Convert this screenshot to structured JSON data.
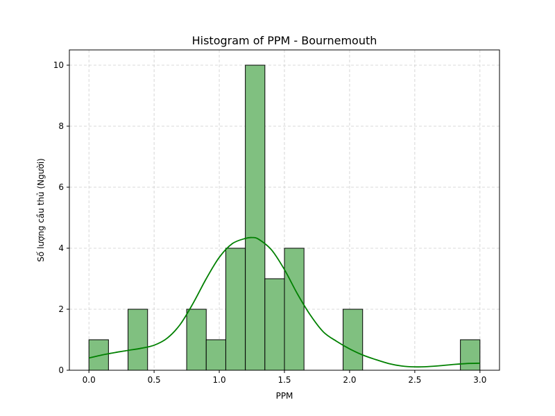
{
  "chart_data": {
    "type": "bar",
    "title": "Histogram of PPM - Bournemouth",
    "xlabel": "PPM",
    "ylabel": "Số lượng cầu thủ (Người)",
    "xlim": [
      -0.15,
      3.15
    ],
    "ylim": [
      0,
      10.5
    ],
    "xticks": [
      0.0,
      0.5,
      1.0,
      1.5,
      2.0,
      2.5,
      3.0
    ],
    "xtick_labels": [
      "0.0",
      "0.5",
      "1.0",
      "1.5",
      "2.0",
      "2.5",
      "3.0"
    ],
    "yticks": [
      0,
      2,
      4,
      6,
      8,
      10
    ],
    "ytick_labels": [
      "0",
      "2",
      "4",
      "6",
      "8",
      "10"
    ],
    "grid": true,
    "bins": [
      {
        "x0": 0.0,
        "x1": 0.15,
        "count": 1
      },
      {
        "x0": 0.15,
        "x1": 0.3,
        "count": 0
      },
      {
        "x0": 0.3,
        "x1": 0.45,
        "count": 2
      },
      {
        "x0": 0.45,
        "x1": 0.6,
        "count": 0
      },
      {
        "x0": 0.6,
        "x1": 0.75,
        "count": 0
      },
      {
        "x0": 0.75,
        "x1": 0.9,
        "count": 2
      },
      {
        "x0": 0.9,
        "x1": 1.05,
        "count": 1
      },
      {
        "x0": 1.05,
        "x1": 1.2,
        "count": 4
      },
      {
        "x0": 1.2,
        "x1": 1.35,
        "count": 10
      },
      {
        "x0": 1.35,
        "x1": 1.5,
        "count": 3
      },
      {
        "x0": 1.5,
        "x1": 1.65,
        "count": 4
      },
      {
        "x0": 1.65,
        "x1": 1.8,
        "count": 0
      },
      {
        "x0": 1.8,
        "x1": 1.95,
        "count": 0
      },
      {
        "x0": 1.95,
        "x1": 2.1,
        "count": 2
      },
      {
        "x0": 2.1,
        "x1": 2.25,
        "count": 0
      },
      {
        "x0": 2.25,
        "x1": 2.4,
        "count": 0
      },
      {
        "x0": 2.4,
        "x1": 2.55,
        "count": 0
      },
      {
        "x0": 2.55,
        "x1": 2.7,
        "count": 0
      },
      {
        "x0": 2.7,
        "x1": 2.85,
        "count": 0
      },
      {
        "x0": 2.85,
        "x1": 3.0,
        "count": 1
      }
    ],
    "kde": {
      "x": [
        0.0,
        0.1,
        0.2,
        0.3,
        0.4,
        0.5,
        0.6,
        0.7,
        0.8,
        0.9,
        1.0,
        1.1,
        1.2,
        1.25,
        1.3,
        1.4,
        1.5,
        1.6,
        1.7,
        1.8,
        1.9,
        2.0,
        2.1,
        2.2,
        2.3,
        2.4,
        2.5,
        2.6,
        2.7,
        2.8,
        2.9,
        3.0
      ],
      "y": [
        0.4,
        0.5,
        0.58,
        0.65,
        0.72,
        0.82,
        1.05,
        1.5,
        2.2,
        3.0,
        3.7,
        4.15,
        4.32,
        4.35,
        4.3,
        3.95,
        3.3,
        2.5,
        1.8,
        1.25,
        0.95,
        0.7,
        0.5,
        0.35,
        0.22,
        0.14,
        0.11,
        0.12,
        0.15,
        0.19,
        0.22,
        0.23
      ]
    },
    "colors": {
      "bar_fill": "#80c080",
      "bar_edge": "#000000",
      "kde_line": "#008000",
      "grid": "#cccccc"
    }
  }
}
